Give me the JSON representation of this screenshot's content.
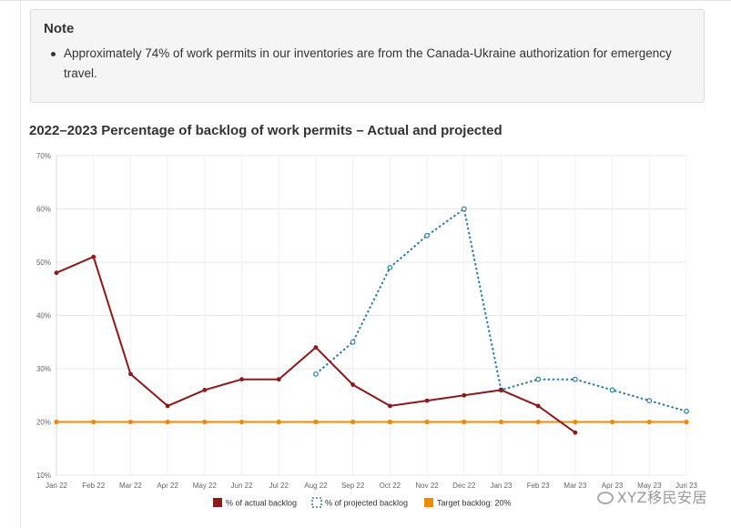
{
  "note": {
    "title": "Note",
    "items": [
      "Approximately 74% of work permits in our inventories are from the Canada-Ukraine authorization for emergency travel."
    ]
  },
  "chart_data": {
    "type": "line",
    "title": "2022–2023 Percentage of backlog of work permits – Actual and projected",
    "categories": [
      "Jan 22",
      "Feb 22",
      "Mar 22",
      "Apr 22",
      "May 22",
      "Jun 22",
      "Jul 22",
      "Aug 22",
      "Sep 22",
      "Oct 22",
      "Nov 22",
      "Dec 22",
      "Jan 23",
      "Feb 23",
      "Mar 23",
      "Apr 23",
      "May 23",
      "Jun 23"
    ],
    "ylim": [
      10,
      70
    ],
    "yticks": [
      10,
      20,
      30,
      40,
      50,
      60,
      70
    ],
    "ytick_suffix": "%",
    "grid": true,
    "legend_position": "bottom",
    "series": [
      {
        "name": "% of actual backlog",
        "color": "#8b1a1a",
        "style": "solid",
        "values": [
          48,
          51,
          29,
          23,
          26,
          28,
          28,
          34,
          27,
          23,
          24,
          25,
          26,
          23,
          18,
          null,
          null,
          null
        ]
      },
      {
        "name": "% of projected backlog",
        "color": "#2e7d9c",
        "style": "dotted",
        "values": [
          null,
          null,
          null,
          null,
          null,
          null,
          null,
          29,
          35,
          49,
          55,
          60,
          26,
          28,
          28,
          26,
          24,
          22
        ]
      },
      {
        "name": "Target backlog: 20%",
        "color": "#f08a00",
        "style": "solid",
        "values": [
          20,
          20,
          20,
          20,
          20,
          20,
          20,
          20,
          20,
          20,
          20,
          20,
          20,
          20,
          20,
          20,
          20,
          20
        ]
      }
    ]
  },
  "watermark": {
    "text": "XYZ移民安居"
  }
}
